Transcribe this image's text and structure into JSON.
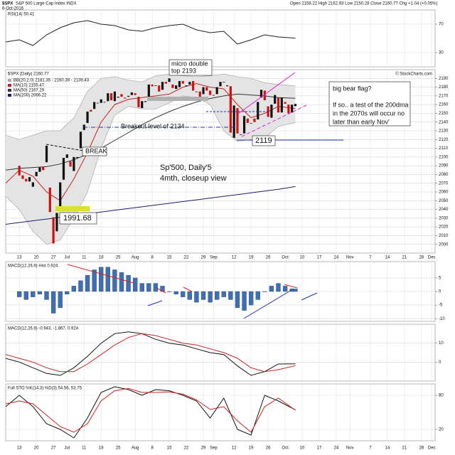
{
  "header": {
    "symbol": "$SPX",
    "name": "S&P 500 Large Cap Index INDX",
    "date": "6-Oct-2016",
    "quote": "Open 2158.22 High 2162.93 Low 2150.28 Close 2160.77 Chg +1.04 (+0.05%)",
    "copyright": "© StockCharts.com"
  },
  "annotations": {
    "micro_top": [
      "micro double",
      "top 2193"
    ],
    "breakout": "Breakout level of 2134",
    "break": "BREAK",
    "low": "1991.68",
    "low2": "2119",
    "caption": [
      "Sp'500, Daily'5",
      "4mth, closeup view"
    ],
    "note": [
      "big bear flag?",
      "If so.. a test of the 200dma",
      "in the 2070s will occur no",
      "later than early Nov'"
    ]
  },
  "chart_data": [
    {
      "type": "line",
      "title": "RSI(14) 50.41",
      "ylim": [
        10,
        90
      ],
      "yticks": [
        30,
        70
      ],
      "grid": true,
      "series": [
        {
          "color": "#222222",
          "x": [
            -4,
            0,
            4,
            8,
            12,
            16,
            20,
            24,
            28,
            32,
            36,
            40,
            44,
            48,
            52,
            56,
            60,
            64,
            68,
            72,
            76,
            81
          ],
          "values": [
            45,
            48,
            40,
            55,
            65,
            72,
            75,
            70,
            68,
            62,
            60,
            65,
            68,
            70,
            62,
            58,
            60,
            42,
            48,
            55,
            52,
            50.41
          ]
        }
      ]
    },
    {
      "type": "candlestick",
      "title": "$SPX (Daily) 2160.77",
      "xlim": [
        -4,
        122
      ],
      "xticks": [
        {
          "value": 0,
          "label": "13"
        },
        {
          "value": 5,
          "label": "20"
        },
        {
          "value": 10,
          "label": "27"
        },
        {
          "value": 14,
          "label": "Jul"
        },
        {
          "value": 19,
          "label": "11"
        },
        {
          "value": 24,
          "label": "18"
        },
        {
          "value": 29,
          "label": "25"
        },
        {
          "value": 34,
          "label": "Aug"
        },
        {
          "value": 39,
          "label": "8"
        },
        {
          "value": 44,
          "label": "15"
        },
        {
          "value": 49,
          "label": "22"
        },
        {
          "value": 54,
          "label": "29"
        },
        {
          "value": 57,
          "label": "Sep"
        },
        {
          "value": 63,
          "label": "12"
        },
        {
          "value": 68,
          "label": "19"
        },
        {
          "value": 73,
          "label": "26"
        },
        {
          "value": 78,
          "label": "Oct"
        },
        {
          "value": 83,
          "label": "10"
        },
        {
          "value": 88,
          "label": "17"
        },
        {
          "value": 93,
          "label": "24"
        },
        {
          "value": 97,
          "label": "Nov"
        },
        {
          "value": 103,
          "label": "7"
        },
        {
          "value": 108,
          "label": "14"
        },
        {
          "value": 113,
          "label": "21"
        },
        {
          "value": 118,
          "label": "28"
        },
        {
          "value": 121,
          "label": "Dec"
        }
      ],
      "ylim": [
        1990,
        2200
      ],
      "yticks": [
        2000,
        2010,
        2020,
        2030,
        2040,
        2050,
        2060,
        2070,
        2080,
        2090,
        2100,
        2110,
        2120,
        2130,
        2140,
        2150,
        2160,
        2170,
        2180,
        2190
      ],
      "grid": true,
      "up_color": "#111111",
      "down_color": "#d01010",
      "x": [
        0,
        1,
        2,
        3,
        4,
        5,
        6,
        7,
        8,
        9,
        10,
        11,
        12,
        13,
        14,
        15,
        16,
        17,
        18,
        19,
        20,
        21,
        22,
        23,
        24,
        25,
        26,
        27,
        28,
        29,
        30,
        31,
        32,
        33,
        34,
        35,
        36,
        37,
        38,
        39,
        40,
        41,
        42,
        43,
        44,
        45,
        46,
        47,
        48,
        49,
        50,
        51,
        52,
        53,
        54,
        55,
        56,
        57,
        58,
        59,
        60,
        61,
        62,
        63,
        64,
        65,
        66,
        67,
        68,
        69,
        70,
        71,
        72,
        73,
        74,
        75,
        76,
        77,
        78,
        79,
        80,
        81
      ],
      "open": [
        2090,
        2079,
        2075,
        2072,
        2066,
        2078,
        2083,
        2089,
        2094,
        2065,
        2031,
        2015,
        2040,
        2074,
        2099,
        2095,
        2084,
        2099,
        2110,
        2131,
        2139,
        2154,
        2155,
        2162,
        2162,
        2163,
        2164,
        2173,
        2164,
        2168,
        2172,
        2168,
        2169,
        2171,
        2173,
        2169,
        2156,
        2163,
        2165,
        2183,
        2182,
        2182,
        2177,
        2186,
        2186,
        2183,
        2178,
        2180,
        2187,
        2181,
        2183,
        2187,
        2175,
        2175,
        2172,
        2180,
        2176,
        2171,
        2172,
        2181,
        2186,
        2181,
        2181,
        2122,
        2156,
        2126,
        2127,
        2144,
        2139,
        2144,
        2143,
        2168,
        2176,
        2158,
        2145,
        2161,
        2168,
        2151,
        2163,
        2160,
        2151,
        2158.22
      ],
      "close": [
        2079,
        2075,
        2072,
        2077,
        2071,
        2083,
        2088,
        2085,
        2113,
        2037,
        2001,
        2036,
        2071,
        2099,
        2103,
        2089,
        2100,
        2100,
        2129,
        2137,
        2152,
        2152,
        2163,
        2162,
        2166,
        2163,
        2173,
        2165,
        2175,
        2169,
        2169,
        2167,
        2170,
        2174,
        2171,
        2157,
        2164,
        2164,
        2183,
        2181,
        2182,
        2175,
        2186,
        2184,
        2190,
        2179,
        2182,
        2187,
        2184,
        2182,
        2186,
        2176,
        2175,
        2169,
        2180,
        2176,
        2171,
        2171,
        2180,
        2186,
        2186,
        2182,
        2128,
        2159,
        2127,
        2126,
        2147,
        2139,
        2139,
        2140,
        2163,
        2177,
        2165,
        2146,
        2160,
        2171,
        2151,
        2168,
        2161,
        2150,
        2160,
        2160.77
      ],
      "overlays": [
        {
          "name": "BB(20,2.0) 2181.35 - 2160.39 - 2139.43",
          "color": "#a8a8a8",
          "x": [
            -4,
            0,
            4,
            8,
            12,
            16,
            20,
            24,
            28,
            32,
            36,
            40,
            44,
            48,
            52,
            56,
            60,
            64,
            68,
            72,
            76,
            81
          ],
          "upper": [
            2125,
            2120,
            2125,
            2130,
            2130,
            2145,
            2175,
            2190,
            2192,
            2188,
            2186,
            2193,
            2195,
            2193,
            2192,
            2193,
            2195,
            2192,
            2190,
            2185,
            2183,
            2181.35
          ],
          "lower": [
            2055,
            2040,
            2015,
            2000,
            2005,
            2030,
            2060,
            2110,
            2148,
            2158,
            2155,
            2155,
            2162,
            2170,
            2168,
            2160,
            2130,
            2118,
            2120,
            2122,
            2135,
            2139.43
          ]
        },
        {
          "name": "MA(10) 2155.47",
          "color": "#c82020",
          "x": [
            -4,
            0,
            4,
            8,
            12,
            16,
            20,
            24,
            28,
            32,
            36,
            40,
            44,
            48,
            52,
            56,
            60,
            64,
            68,
            72,
            76,
            81
          ],
          "values": [
            2070,
            2085,
            2078,
            2060,
            2050,
            2075,
            2105,
            2140,
            2160,
            2166,
            2168,
            2170,
            2172,
            2180,
            2184,
            2180,
            2178,
            2160,
            2145,
            2150,
            2158,
            2155.47
          ]
        },
        {
          "name": "MA(50) 2167.29",
          "color": "#333333",
          "x": [
            -4,
            0,
            4,
            8,
            12,
            16,
            20,
            24,
            28,
            32,
            36,
            40,
            44,
            48,
            52,
            56,
            60,
            64,
            68,
            72,
            76,
            81
          ],
          "values": [
            2085,
            2087,
            2088,
            2089,
            2092,
            2097,
            2103,
            2110,
            2119,
            2128,
            2137,
            2145,
            2152,
            2158,
            2163,
            2167,
            2170,
            2172,
            2171,
            2170,
            2168,
            2167.29
          ]
        },
        {
          "name": "MA(200) 2066.22",
          "color": "#1c1c70",
          "x": [
            -4,
            0,
            4,
            8,
            12,
            16,
            20,
            24,
            28,
            32,
            36,
            40,
            44,
            48,
            52,
            56,
            60,
            64,
            68,
            72,
            76,
            81
          ],
          "values": [
            2023,
            2025,
            2027,
            2029,
            2031,
            2033,
            2035,
            2037,
            2039,
            2041,
            2043,
            2045,
            2047,
            2049,
            2051,
            2053,
            2055,
            2057,
            2059,
            2061,
            2063,
            2066.22
          ]
        }
      ]
    },
    {
      "type": "bar",
      "title": "MACD(12,26,9) Hist 0.924",
      "ylim": [
        -11,
        11
      ],
      "yticks": [
        -10,
        -5,
        0,
        5
      ],
      "grid": true,
      "color": "#3f6fb0",
      "x": [
        0,
        2,
        4,
        6,
        8,
        10,
        12,
        14,
        16,
        18,
        20,
        22,
        24,
        26,
        28,
        30,
        32,
        34,
        36,
        38,
        40,
        42,
        44,
        46,
        48,
        50,
        52,
        54,
        56,
        58,
        60,
        62,
        64,
        66,
        68,
        70,
        72,
        74,
        76,
        78,
        80,
        81
      ],
      "values": [
        -2,
        -3,
        -2,
        -1,
        -3,
        -8,
        -6,
        -1,
        2,
        4,
        6,
        8,
        9,
        9,
        8,
        7,
        6,
        5,
        3,
        3,
        3,
        2,
        0,
        -1,
        -2,
        -3,
        -4,
        -3,
        -4,
        -3,
        -2,
        -3,
        -6,
        -7,
        -5,
        -3,
        0,
        2,
        3,
        2,
        1,
        0.924
      ]
    },
    {
      "type": "line",
      "title": "MACD(12,26,9) -0.943, -1.867, 0.924",
      "ylim": [
        -10,
        20
      ],
      "yticks": [
        0,
        10
      ],
      "grid": true,
      "series": [
        {
          "color": "#111111",
          "x": [
            -4,
            0,
            4,
            8,
            12,
            16,
            20,
            24,
            28,
            32,
            36,
            40,
            44,
            48,
            52,
            56,
            60,
            64,
            68,
            72,
            76,
            81
          ],
          "values": [
            2,
            0,
            -3,
            -6,
            -7,
            -3,
            3,
            10,
            15,
            16,
            15,
            12,
            10,
            9,
            7,
            5,
            4,
            -2,
            -7,
            -5,
            -1,
            -0.943
          ]
        },
        {
          "color": "#d02020",
          "x": [
            -4,
            0,
            4,
            8,
            12,
            16,
            20,
            24,
            28,
            32,
            36,
            40,
            44,
            48,
            52,
            56,
            60,
            64,
            68,
            72,
            76,
            81
          ],
          "values": [
            4,
            2,
            0,
            -3,
            -5,
            -5,
            -1,
            4,
            9,
            13,
            15,
            14,
            12,
            10,
            9,
            7,
            5,
            2,
            -3,
            -5,
            -4,
            -1.867
          ]
        }
      ]
    },
    {
      "type": "line",
      "title": "Full STO %K(14,3) %D(3) 54.56, 53.75",
      "ylim": [
        0,
        100
      ],
      "yticks": [
        20,
        80
      ],
      "grid": true,
      "series": [
        {
          "color": "#111111",
          "x": [
            -4,
            0,
            4,
            8,
            12,
            16,
            20,
            24,
            28,
            32,
            36,
            40,
            44,
            48,
            52,
            56,
            60,
            64,
            68,
            72,
            76,
            81
          ],
          "values": [
            60,
            80,
            60,
            30,
            20,
            5,
            40,
            85,
            95,
            90,
            80,
            90,
            88,
            80,
            70,
            40,
            75,
            20,
            10,
            80,
            70,
            54.56
          ]
        },
        {
          "color": "#d02020",
          "x": [
            -4,
            0,
            4,
            8,
            12,
            16,
            20,
            24,
            28,
            32,
            36,
            40,
            44,
            48,
            52,
            56,
            60,
            64,
            68,
            72,
            76,
            81
          ],
          "values": [
            65,
            70,
            65,
            45,
            25,
            15,
            30,
            70,
            88,
            92,
            85,
            85,
            86,
            82,
            72,
            55,
            60,
            35,
            15,
            60,
            75,
            53.75
          ]
        }
      ]
    }
  ]
}
